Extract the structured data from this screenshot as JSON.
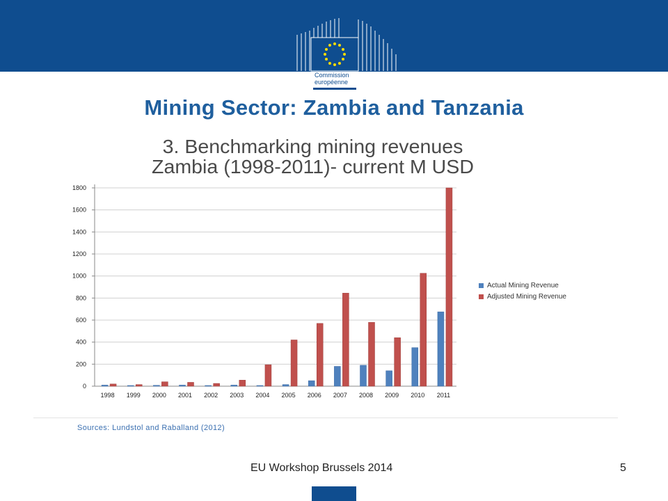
{
  "header": {
    "logo_line1": "Commission",
    "logo_line2": "européenne"
  },
  "page_title": "Mining Sector: Zambia and Tanzania",
  "source": "Sources: Lundstol and Raballand (2012)",
  "footer": {
    "text": "EU Workshop Brussels 2014",
    "page_number": "5"
  },
  "colors": {
    "brand_blue": "#0f4d8f",
    "actual": "#4f81bd",
    "adjusted": "#c0504d"
  },
  "chart_data": {
    "type": "bar",
    "title_line1": "3. Benchmarking mining revenues",
    "title_line2": "Zambia (1998-2011)- current M USD",
    "categories": [
      "1998",
      "1999",
      "2000",
      "2001",
      "2002",
      "2003",
      "2004",
      "2005",
      "2006",
      "2007",
      "2008",
      "2009",
      "2010",
      "2011"
    ],
    "series": [
      {
        "name": "Actual Mining Revenue",
        "values": [
          10,
          5,
          8,
          10,
          5,
          10,
          5,
          15,
          50,
          180,
          190,
          140,
          350,
          675
        ]
      },
      {
        "name": "Adjusted Mining Revenue",
        "values": [
          20,
          15,
          40,
          35,
          25,
          55,
          195,
          420,
          570,
          845,
          580,
          440,
          1025,
          1800
        ]
      }
    ],
    "yticks": [
      0,
      200,
      400,
      600,
      800,
      1000,
      1200,
      1400,
      1600,
      1800
    ],
    "ylim": [
      0,
      1800
    ],
    "grid": true,
    "legend": "right"
  }
}
